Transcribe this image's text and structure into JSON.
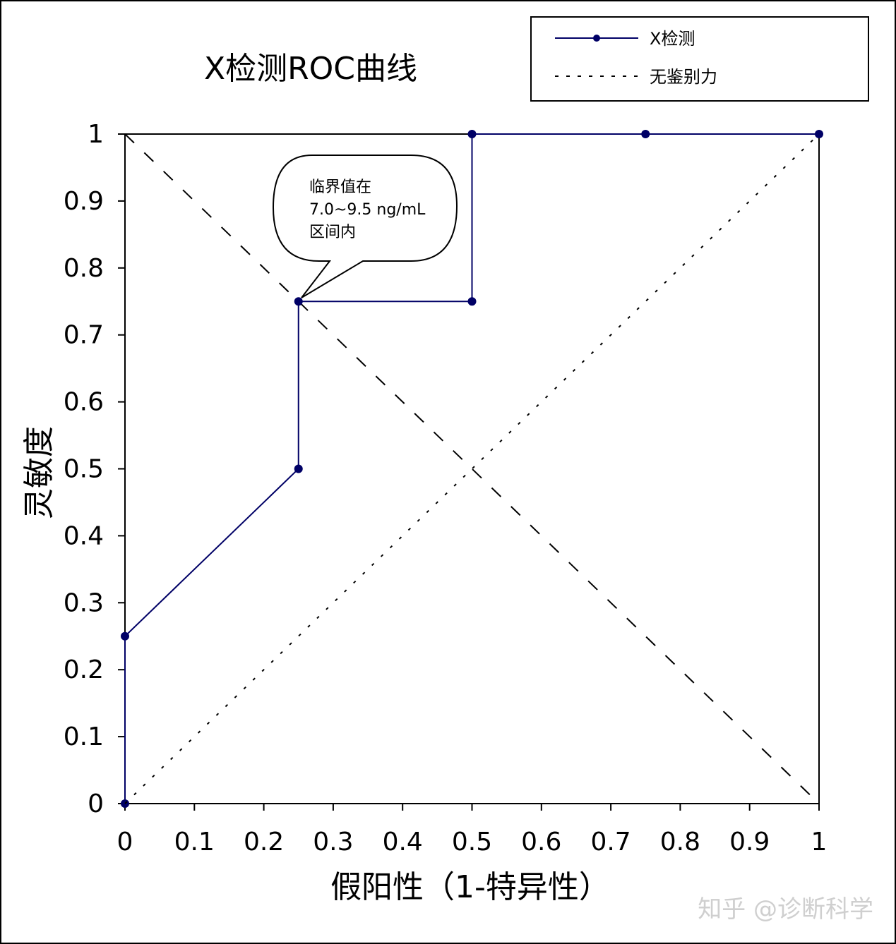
{
  "chart_data": {
    "type": "line",
    "title": "X检测ROC曲线",
    "xlabel": "假阳性（1-特异性）",
    "ylabel": "灵敏度",
    "xlim": [
      0,
      1
    ],
    "ylim": [
      0,
      1
    ],
    "x_ticks": [
      "0",
      "0.1",
      "0.2",
      "0.3",
      "0.4",
      "0.5",
      "0.6",
      "0.7",
      "0.8",
      "0.9",
      "1"
    ],
    "y_ticks": [
      "0",
      "0.1",
      "0.2",
      "0.3",
      "0.4",
      "0.5",
      "0.6",
      "0.7",
      "0.8",
      "0.9",
      "1"
    ],
    "legend_position": "top-right",
    "series": [
      {
        "name": "X检测",
        "style": "solid-with-markers",
        "color": "#000066",
        "x": [
          0,
          0,
          0.25,
          0.25,
          0.5,
          0.5,
          0.75,
          1
        ],
        "y": [
          0,
          0.25,
          0.5,
          0.75,
          0.75,
          1,
          1,
          1
        ]
      },
      {
        "name": "无鉴别力",
        "style": "dotted",
        "color": "#000000",
        "x": [
          0,
          1
        ],
        "y": [
          0,
          1
        ]
      }
    ],
    "reference_line": {
      "style": "dashed",
      "color": "#000000",
      "x": [
        0,
        1
      ],
      "y": [
        1,
        0
      ]
    },
    "annotation": {
      "lines": [
        "临界值在",
        "7.0~9.5 ng/mL",
        "区间内"
      ],
      "point": [
        0.25,
        0.75
      ]
    }
  },
  "watermark": "知乎 @诊断科学"
}
